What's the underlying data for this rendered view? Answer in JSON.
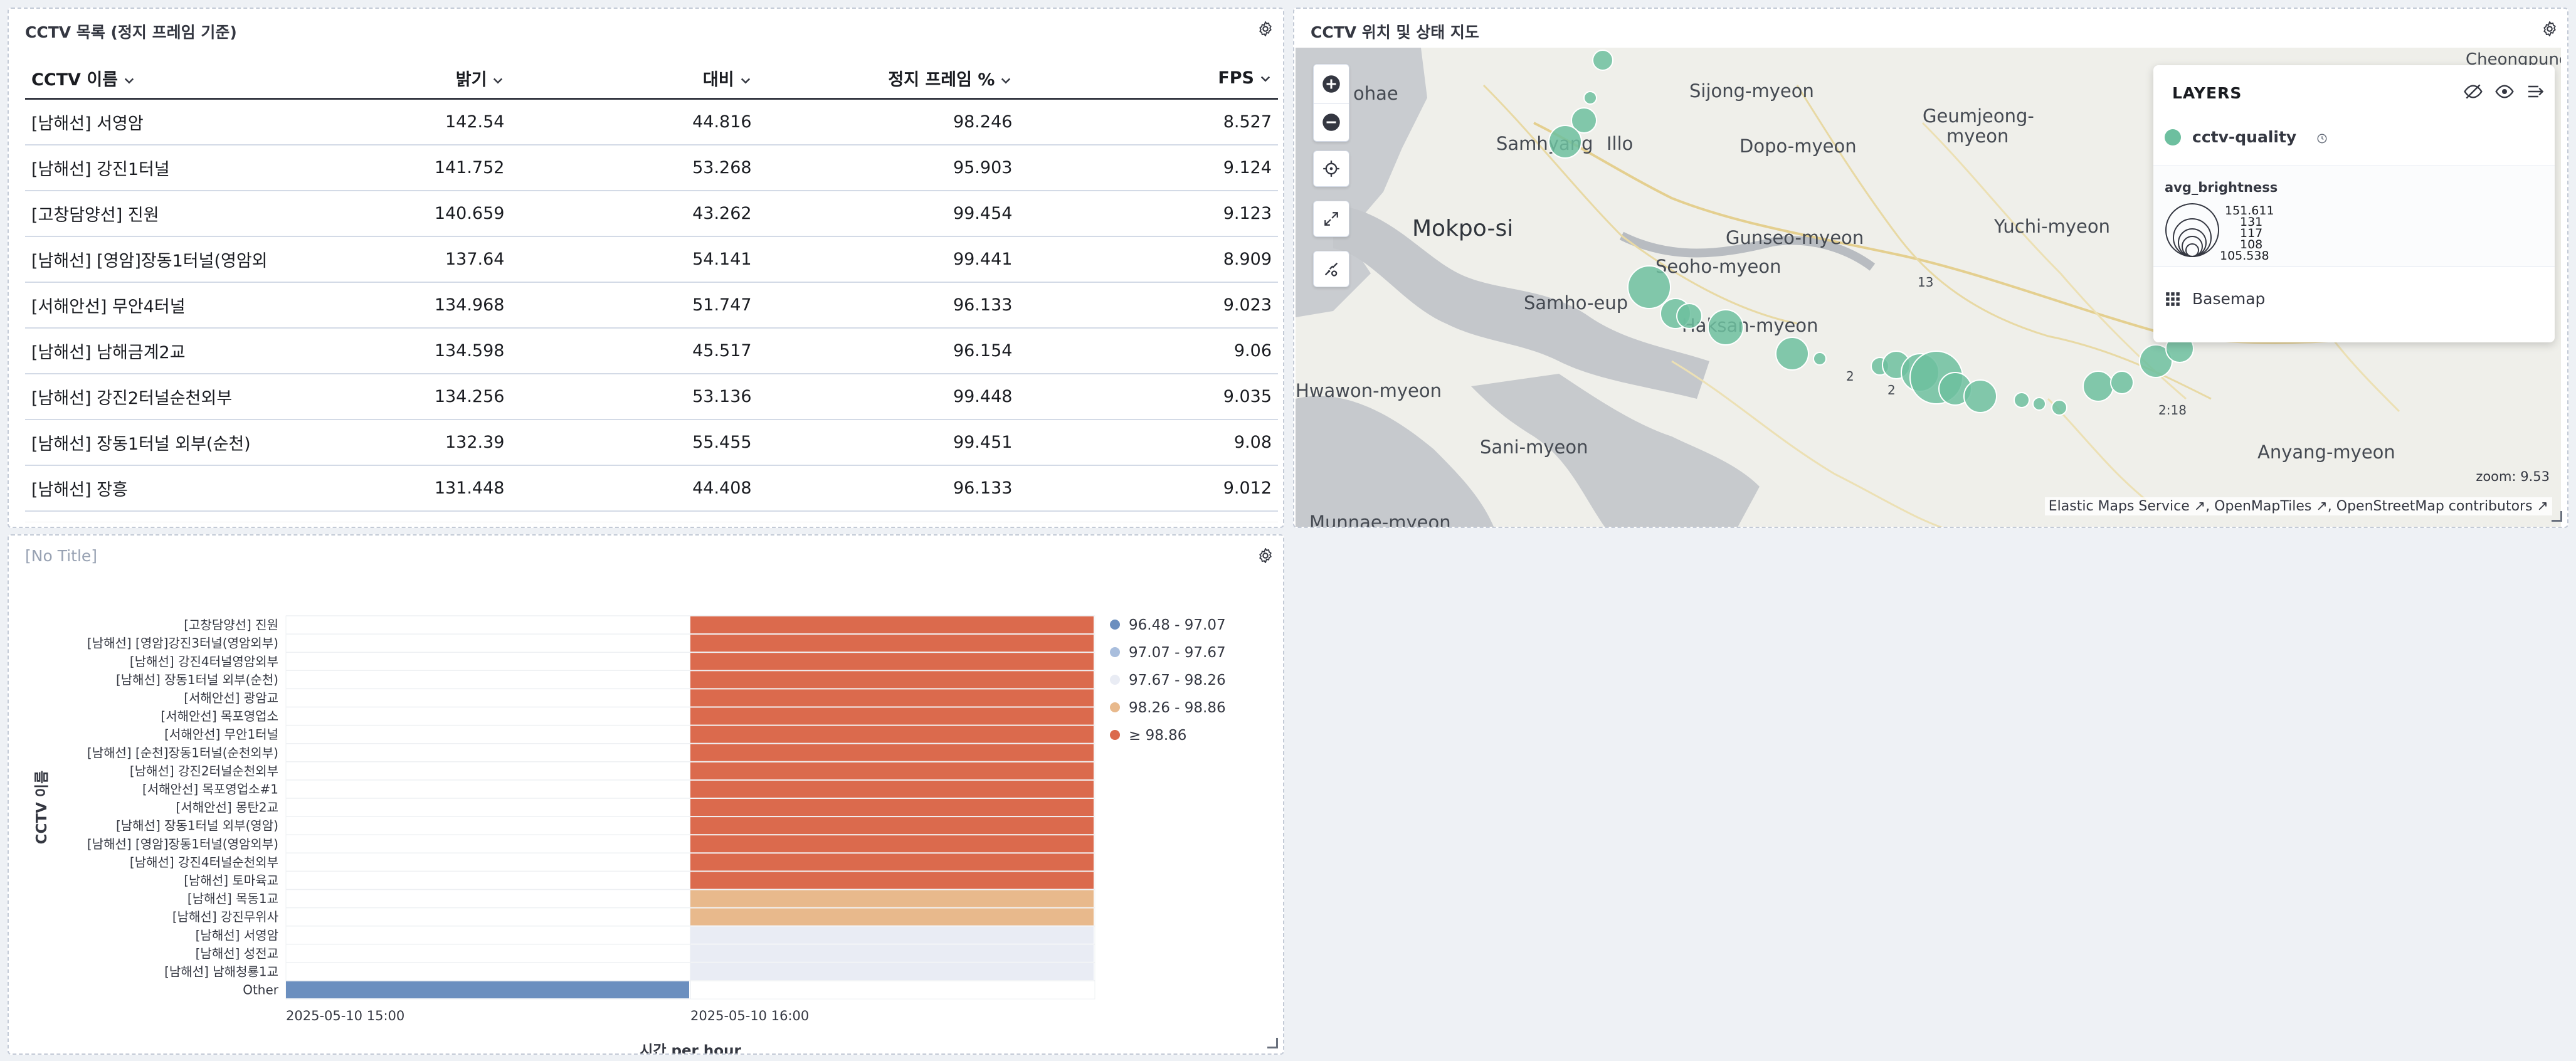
{
  "table_panel": {
    "title": "CCTV 목록 (정지 프레임 기준)",
    "columns": [
      "CCTV 이름",
      "밝기",
      "대비",
      "정지 프레임 %",
      "FPS"
    ],
    "rows": [
      [
        "[남해선] 서영암",
        "142.54",
        "44.816",
        "98.246",
        "8.527"
      ],
      [
        "[남해선] 강진1터널",
        "141.752",
        "53.268",
        "95.903",
        "9.124"
      ],
      [
        "[고창담양선] 진원",
        "140.659",
        "43.262",
        "99.454",
        "9.123"
      ],
      [
        "[남해선] [영암]장동1터널(영암외",
        "137.64",
        "54.141",
        "99.441",
        "8.909"
      ],
      [
        "[서해안선] 무안4터널",
        "134.968",
        "51.747",
        "96.133",
        "9.023"
      ],
      [
        "[남해선] 남해금계2교",
        "134.598",
        "45.517",
        "96.154",
        "9.06"
      ],
      [
        "[남해선] 강진2터널순천외부",
        "134.256",
        "53.136",
        "99.448",
        "9.035"
      ],
      [
        "[남해선] 장동1터널 외부(순천)",
        "132.39",
        "55.455",
        "99.451",
        "9.08"
      ],
      [
        "[남해선] 장흥",
        "131.448",
        "44.408",
        "96.133",
        "9.012"
      ]
    ]
  },
  "map_panel": {
    "title": "CCTV 위치 및 상태 지도",
    "layers_title": "LAYERS",
    "layer_name": "cctv-quality",
    "legend_title": "avg_brightness",
    "size_legend_values": [
      "151.611",
      "131",
      "117",
      "108",
      "105.538"
    ],
    "basemap_label": "Basemap",
    "zoom_text": "zoom: 9.53",
    "attribution": [
      "Elastic Maps Service",
      "OpenMapTiles",
      "OpenStreetMap contributors"
    ],
    "place_labels": [
      "ohae",
      "Sijong-myeon",
      "Geumjeong-",
      "myeon",
      "Samhyang",
      "Illo",
      "Dopo-myeon",
      "Mokpo-si",
      "Seoho-myeon",
      "Gunseo-myeon",
      "Yuchi-myeon",
      "Samho-eup",
      "Haksan-myeon",
      "13",
      "2",
      "2",
      "2:18",
      "Hwawon-myeon",
      "Sani-myeon",
      "Anyang-myeon",
      "Munnae-myeon",
      "Cheongpung"
    ],
    "point_color": "#6dbf9f"
  },
  "chart_panel": {
    "title": "[No Title]",
    "chart_data": {
      "type": "heatmap",
      "title": "",
      "xlabel": "시간 per hour",
      "ylabel": "CCTV 이름",
      "x": [
        "2025-05-10 15:00",
        "2025-05-10 16:00"
      ],
      "categories": [
        "[고창담양선] 진원",
        "[남해선] [영암]강진3터널(영암외부)",
        "[남해선] 강진4터널영암외부",
        "[남해선] 장동1터널 외부(순천)",
        "[서해안선] 광암교",
        "[서해안선] 목포영업소",
        "[서해안선] 무안1터널",
        "[남해선] [순천]장동1터널(순천외부)",
        "[남해선] 강진2터널순천외부",
        "[서해안선] 목포영업소#1",
        "[서해안선] 몽탄2교",
        "[남해선] 장동1터널 외부(영암)",
        "[남해선] [영암]장동1터널(영암외부)",
        "[남해선] 강진4터널순천외부",
        "[남해선] 토마육교",
        "[남해선] 목동1교",
        "[남해선] 강진무위사",
        "[남해선] 서영암",
        "[남해선] 성전교",
        "[남해선] 남해청룡1교",
        "Other"
      ],
      "cells": [
        {
          "row": "[고창담양선] 진원",
          "x": "2025-05-10 16:00",
          "bucket": "≥ 98.86"
        },
        {
          "row": "[남해선] [영암]강진3터널(영암외부)",
          "x": "2025-05-10 16:00",
          "bucket": "≥ 98.86"
        },
        {
          "row": "[남해선] 강진4터널영암외부",
          "x": "2025-05-10 16:00",
          "bucket": "≥ 98.86"
        },
        {
          "row": "[남해선] 장동1터널 외부(순천)",
          "x": "2025-05-10 16:00",
          "bucket": "≥ 98.86"
        },
        {
          "row": "[서해안선] 광암교",
          "x": "2025-05-10 16:00",
          "bucket": "≥ 98.86"
        },
        {
          "row": "[서해안선] 목포영업소",
          "x": "2025-05-10 16:00",
          "bucket": "≥ 98.86"
        },
        {
          "row": "[서해안선] 무안1터널",
          "x": "2025-05-10 16:00",
          "bucket": "≥ 98.86"
        },
        {
          "row": "[남해선] [순천]장동1터널(순천외부)",
          "x": "2025-05-10 16:00",
          "bucket": "≥ 98.86"
        },
        {
          "row": "[남해선] 강진2터널순천외부",
          "x": "2025-05-10 16:00",
          "bucket": "≥ 98.86"
        },
        {
          "row": "[서해안선] 목포영업소#1",
          "x": "2025-05-10 16:00",
          "bucket": "≥ 98.86"
        },
        {
          "row": "[서해안선] 몽탄2교",
          "x": "2025-05-10 16:00",
          "bucket": "≥ 98.86"
        },
        {
          "row": "[남해선] 장동1터널 외부(영암)",
          "x": "2025-05-10 16:00",
          "bucket": "≥ 98.86"
        },
        {
          "row": "[남해선] [영암]장동1터널(영암외부)",
          "x": "2025-05-10 16:00",
          "bucket": "≥ 98.86"
        },
        {
          "row": "[남해선] 강진4터널순천외부",
          "x": "2025-05-10 16:00",
          "bucket": "≥ 98.86"
        },
        {
          "row": "[남해선] 토마육교",
          "x": "2025-05-10 16:00",
          "bucket": "≥ 98.86"
        },
        {
          "row": "[남해선] 목동1교",
          "x": "2025-05-10 16:00",
          "bucket": "98.26 - 98.86"
        },
        {
          "row": "[남해선] 강진무위사",
          "x": "2025-05-10 16:00",
          "bucket": "98.26 - 98.86"
        },
        {
          "row": "[남해선] 서영암",
          "x": "2025-05-10 16:00",
          "bucket": "97.67 - 98.26"
        },
        {
          "row": "[남해선] 성전교",
          "x": "2025-05-10 16:00",
          "bucket": "97.67 - 98.26"
        },
        {
          "row": "[남해선] 남해청룡1교",
          "x": "2025-05-10 16:00",
          "bucket": "97.67 - 98.26"
        },
        {
          "row": "Other",
          "x": "2025-05-10 15:00",
          "bucket": "96.48 - 97.07"
        }
      ],
      "legend": [
        {
          "label": "96.48 - 97.07",
          "color": "#6b8fbf"
        },
        {
          "label": "97.07 - 97.67",
          "color": "#a9bedd"
        },
        {
          "label": "97.67 - 98.26",
          "color": "#e9ecf4"
        },
        {
          "label": "98.26 - 98.86",
          "color": "#e8b98c"
        },
        {
          "label": "≥ 98.86",
          "color": "#db6a4d"
        }
      ],
      "legend_position": "right",
      "grid": true
    }
  }
}
